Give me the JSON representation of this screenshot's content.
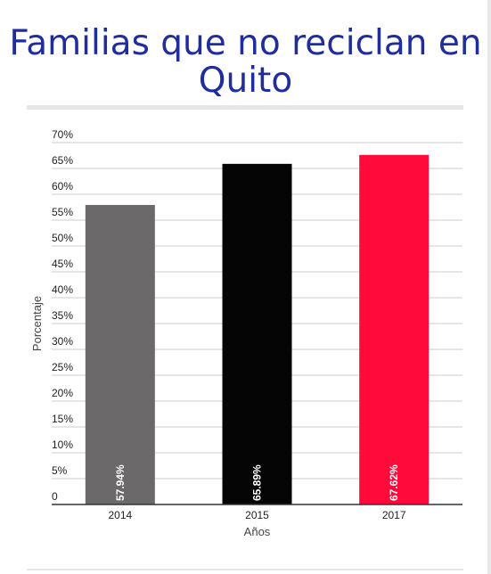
{
  "chart_data": {
    "type": "bar",
    "title": "Familias que no reciclan en Quito",
    "xlabel": "Años",
    "ylabel": "Porcentaje",
    "categories": [
      "2014",
      "2015",
      "2017"
    ],
    "values": [
      57.94,
      65.89,
      67.62
    ],
    "value_labels": [
      "57.94%",
      "65.89%",
      "67.62%"
    ],
    "colors": [
      "#6b6969",
      "#050505",
      "#ff0a3b"
    ],
    "ylim": [
      0,
      70
    ],
    "yticks": [
      0,
      5,
      10,
      15,
      20,
      25,
      30,
      35,
      40,
      45,
      50,
      55,
      60,
      65,
      70
    ],
    "ytick_labels": [
      "0",
      "5%",
      "10%",
      "15%",
      "20%",
      "25%",
      "30%",
      "35%",
      "40%",
      "45%",
      "50%",
      "55%",
      "60%",
      "65%",
      "70%"
    ],
    "grid": true,
    "legend": "none"
  }
}
